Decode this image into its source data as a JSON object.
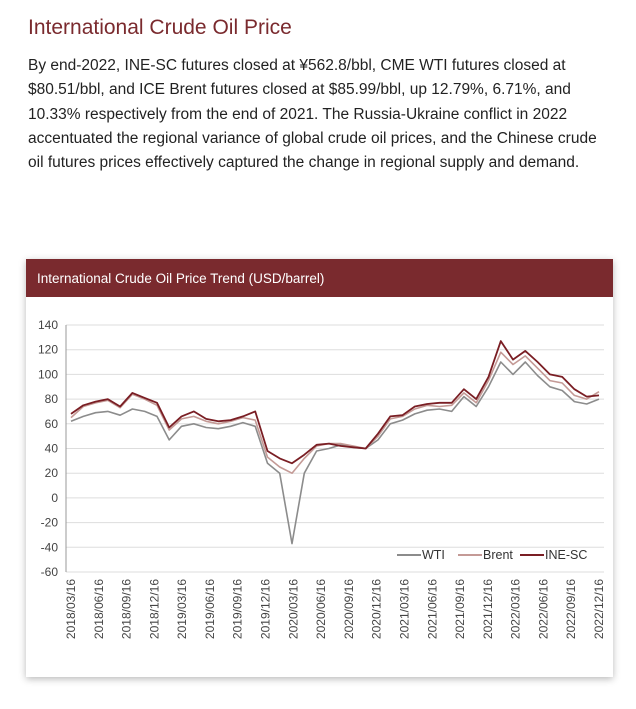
{
  "article": {
    "heading": "International Crude Oil Price",
    "paragraph": "By end-2022, INE-SC futures closed at ¥562.8/bbl, CME WTI futures closed at $80.51/bbl, and ICE Brent futures closed at $85.99/bbl, up 12.79%, 6.71%, and 10.33% respectively from the end of 2021. The Russia-Ukraine conflict in 2022 accentuated the regional variance of global crude oil prices, and the Chinese crude oil futures prices effectively captured the change in regional supply and demand."
  },
  "colors": {
    "accent": "#7a2a2e",
    "wti": "#8c8c8c",
    "brent": "#c49a96",
    "ine_sc": "#7a1e24",
    "grid": "#dddddd"
  },
  "chart_data": {
    "type": "line",
    "title": "International Crude Oil Price Trend (USD/barrel)",
    "xlabel": "",
    "ylabel": "",
    "ylim": [
      -60,
      140
    ],
    "yticks": [
      "140",
      "120",
      "100",
      "80",
      "60",
      "40",
      "20",
      "0",
      "-20",
      "-40",
      "-60"
    ],
    "xticks": [
      "2018/03/16",
      "2018/06/16",
      "2018/09/16",
      "2018/12/16",
      "2019/03/16",
      "2019/06/16",
      "2019/09/16",
      "2019/12/16",
      "2020/03/16",
      "2020/06/16",
      "2020/09/16",
      "2020/12/16",
      "2021/03/16",
      "2021/06/16",
      "2021/09/16",
      "2021/12/16",
      "2022/03/16",
      "2022/06/16",
      "2022/09/16",
      "2022/12/16"
    ],
    "grid": true,
    "legend_position": "bottom-right",
    "series": [
      {
        "name": "WTI",
        "values": [
          62,
          66,
          69,
          70,
          67,
          72,
          70,
          66,
          47,
          58,
          60,
          57,
          56,
          58,
          61,
          58,
          28,
          20,
          -37,
          20,
          38,
          40,
          43,
          41,
          40,
          47,
          60,
          63,
          68,
          71,
          72,
          70,
          82,
          74,
          90,
          110,
          100,
          110,
          99,
          90,
          87,
          78,
          76,
          80
        ]
      },
      {
        "name": "Brent",
        "values": [
          65,
          74,
          77,
          79,
          73,
          84,
          80,
          75,
          55,
          64,
          66,
          62,
          60,
          62,
          65,
          63,
          33,
          25,
          20,
          32,
          42,
          44,
          44,
          42,
          40,
          50,
          64,
          66,
          72,
          75,
          74,
          75,
          85,
          77,
          95,
          118,
          108,
          115,
          105,
          95,
          93,
          83,
          80,
          86
        ]
      },
      {
        "name": "INE-SC",
        "values": [
          68,
          75,
          78,
          80,
          74,
          85,
          81,
          77,
          57,
          66,
          70,
          64,
          62,
          63,
          66,
          70,
          38,
          32,
          28,
          35,
          43,
          44,
          42,
          41,
          40,
          52,
          66,
          67,
          74,
          76,
          77,
          77,
          88,
          80,
          98,
          127,
          112,
          119,
          110,
          100,
          98,
          88,
          82,
          83
        ]
      }
    ]
  }
}
